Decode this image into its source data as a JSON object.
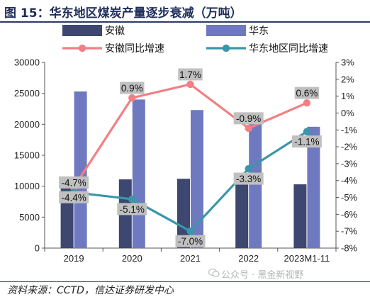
{
  "title": "图 15：华东地区煤炭产量逐步衰减（万吨）",
  "source": "资料来源：CCTD，信达证券研发中心",
  "watermark": "公众号 · 黑金新视野",
  "colors": {
    "bar_anhui": "#3d4770",
    "bar_east": "#6f79c0",
    "line_anhui": "#f37f84",
    "line_east": "#3a96ab",
    "label_bg": "#c0c0c0"
  },
  "chart_data": {
    "type": "bar+line",
    "categories": [
      "2019",
      "2020",
      "2021",
      "2022",
      "2023M1-11"
    ],
    "bar_series": [
      {
        "name": "安徽",
        "values": [
          11100,
          11100,
          11200,
          11100,
          10300
        ]
      },
      {
        "name": "华东",
        "values": [
          25300,
          24000,
          22300,
          21100,
          19600
        ]
      }
    ],
    "line_series": [
      {
        "name": "安徽同比增速",
        "values": [
          -4.4,
          0.9,
          1.7,
          -0.9,
          0.6
        ],
        "labels": [
          "-4.4%",
          "0.9%",
          "1.7%",
          "-0.9%",
          "0.6%"
        ],
        "label_pos": [
          "below",
          "above",
          "above",
          "above",
          "above"
        ]
      },
      {
        "name": "华东地区同比增速",
        "values": [
          -4.7,
          -5.1,
          -7.0,
          -3.3,
          -1.1
        ],
        "labels": [
          "-4.7%",
          "-5.1%",
          "-7.0%",
          "-3.3%",
          "-1.1%"
        ],
        "label_pos": [
          "above",
          "below",
          "below",
          "below",
          "below"
        ]
      }
    ],
    "y_left": {
      "min": 0,
      "max": 30000,
      "ticks": [
        "0",
        "5000",
        "10000",
        "15000",
        "20000",
        "25000",
        "30000"
      ]
    },
    "y_right": {
      "min": -8,
      "max": 3,
      "ticks": [
        "-8%",
        "-7%",
        "-6%",
        "-5%",
        "-4%",
        "-3%",
        "-2%",
        "-1%",
        "0%",
        "1%",
        "2%",
        "3%"
      ]
    },
    "legend": [
      "安徽",
      "华东",
      "安徽同比增速",
      "华东地区同比增速"
    ],
    "grid": false,
    "legend_position": "top"
  }
}
